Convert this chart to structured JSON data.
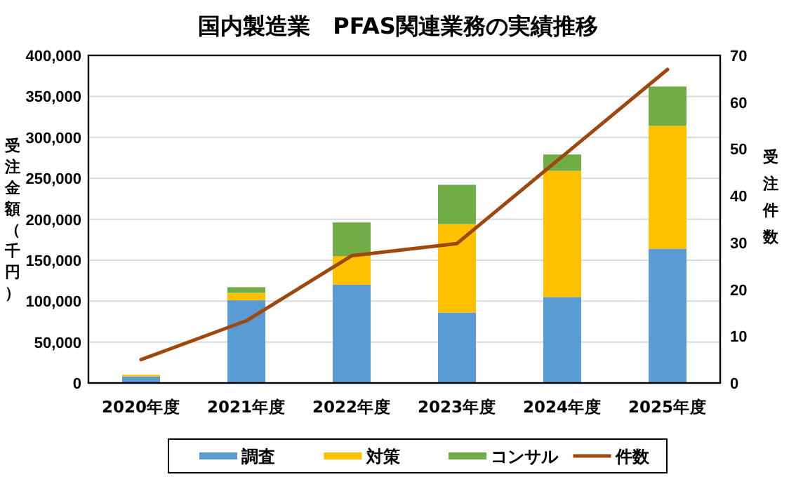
{
  "chart_data": {
    "type": "bar",
    "stacked": true,
    "title": "国内製造業　PFAS関連業務の実績推移",
    "ylabel": "受注金額（千円）",
    "y2label": "受注件数",
    "categories": [
      "2020年度",
      "2021年度",
      "2022年度",
      "2023年度",
      "2024年度",
      "2025年度"
    ],
    "series": [
      {
        "name": "調査",
        "color": "#5b9bd5",
        "values": [
          8000,
          101000,
          120000,
          86000,
          105000,
          164000
        ]
      },
      {
        "name": "対策",
        "color": "#ffc000",
        "values": [
          2000,
          9000,
          35000,
          108000,
          154000,
          150000
        ]
      },
      {
        "name": "コンサル",
        "color": "#70ad47",
        "values": [
          0,
          7000,
          41000,
          48000,
          20000,
          48000
        ]
      },
      {
        "name": "件数",
        "type": "line",
        "axis": "y2",
        "color": "#9e480e",
        "values": [
          5,
          13.3,
          27.2,
          29.8,
          48.4,
          67
        ]
      }
    ],
    "ylim": [
      0,
      400000
    ],
    "yticks": [
      0,
      {
        "value": 50000,
        "label": "50,000"
      },
      {
        "value": 100000,
        "label": "100,000"
      },
      {
        "value": 150000,
        "label": "150,000"
      },
      {
        "value": 200000,
        "label": "200,000"
      },
      {
        "value": 250000,
        "label": "250,000"
      },
      {
        "value": 300000,
        "label": "300,000"
      },
      {
        "value": 350000,
        "label": "350,000"
      },
      {
        "value": 400000,
        "label": "400,000"
      }
    ],
    "y2lim": [
      0,
      70
    ],
    "y2ticks": [
      0,
      10,
      20,
      30,
      40,
      50,
      60,
      70
    ],
    "grid": "y",
    "legend": "bottom"
  }
}
